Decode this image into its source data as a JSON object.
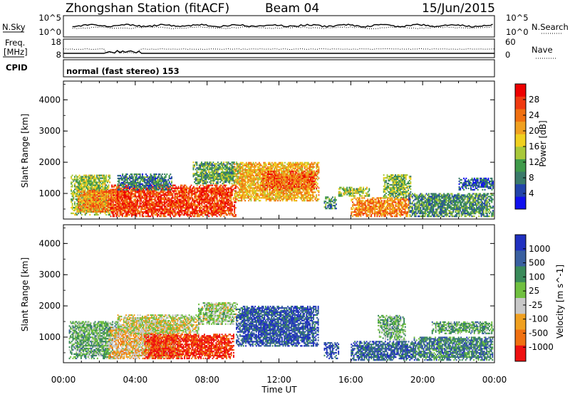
{
  "header": {
    "station": "Zhongshan Station (fitACF)",
    "beam": "Beam 04",
    "date": "15/Jun/2015"
  },
  "nsky_panel": {
    "left_label": "N.Sky",
    "left_ticks": [
      "10^5",
      "10^0"
    ],
    "right_label": "N.Search",
    "right_ticks": [
      "10^5",
      "10^0"
    ]
  },
  "freq_panel": {
    "left_label_1": "Freq.",
    "left_label_2": "[MHz]",
    "left_ticks": [
      "18",
      "8"
    ],
    "right_label": "Nave",
    "right_ticks": [
      "60",
      "0"
    ]
  },
  "cpid": {
    "label": "CPID",
    "mode": "normal (fast stereo) 153"
  },
  "x_axis": {
    "label": "Time UT",
    "ticks": [
      "00:00",
      "04:00",
      "08:00",
      "12:00",
      "16:00",
      "20:00",
      "00:00"
    ]
  },
  "chart_data": [
    {
      "type": "heatmap",
      "panel": "power",
      "xlabel": "Time UT",
      "ylabel": "Slant Range [km]",
      "xlim": [
        0,
        24
      ],
      "ylim": [
        180,
        4600
      ],
      "y_ticks": [
        "1000",
        "2000",
        "3000",
        "4000"
      ],
      "colorbar_label": "Power [dB]",
      "colorbar_ticks": [
        "4",
        "8",
        "12",
        "16",
        "20",
        "24",
        "28"
      ],
      "colors": [
        "#1010ee",
        "#2244aa",
        "#3a7a6a",
        "#3f9a4a",
        "#a8c83a",
        "#f0d020",
        "#f0a020",
        "#f07010",
        "#f03a10",
        "#ee0000"
      ],
      "regions": [
        {
          "t0": 0.4,
          "t1": 2.6,
          "r0": 300,
          "r1": 1600,
          "v": 0.45
        },
        {
          "t0": 0.8,
          "t1": 3.8,
          "r0": 400,
          "r1": 1100,
          "v": 0.7
        },
        {
          "t0": 2.6,
          "t1": 9.6,
          "r0": 250,
          "r1": 1250,
          "v": 0.85
        },
        {
          "t0": 3.0,
          "t1": 6.0,
          "r0": 1100,
          "r1": 1600,
          "v": 0.25
        },
        {
          "t0": 7.2,
          "t1": 9.8,
          "r0": 1300,
          "r1": 2000,
          "v": 0.35
        },
        {
          "t0": 9.5,
          "t1": 14.2,
          "r0": 750,
          "r1": 2000,
          "v": 0.62
        },
        {
          "t0": 11.0,
          "t1": 14.1,
          "r0": 1100,
          "r1": 1700,
          "v": 0.78
        },
        {
          "t0": 14.5,
          "t1": 15.2,
          "r0": 500,
          "r1": 900,
          "v": 0.3
        },
        {
          "t0": 15.3,
          "t1": 17.0,
          "r0": 900,
          "r1": 1200,
          "v": 0.45
        },
        {
          "t0": 16.0,
          "t1": 19.3,
          "r0": 250,
          "r1": 850,
          "v": 0.72
        },
        {
          "t0": 17.8,
          "t1": 19.3,
          "r0": 850,
          "r1": 1600,
          "v": 0.4
        },
        {
          "t0": 19.2,
          "t1": 23.9,
          "r0": 250,
          "r1": 1000,
          "v": 0.3
        },
        {
          "t0": 22.0,
          "t1": 23.9,
          "r0": 1100,
          "r1": 1500,
          "v": 0.2
        }
      ]
    },
    {
      "type": "heatmap",
      "panel": "velocity",
      "xlabel": "Time UT",
      "ylabel": "Slant Range [km]",
      "xlim": [
        0,
        24
      ],
      "ylim": [
        180,
        4600
      ],
      "y_ticks": [
        "1000",
        "2000",
        "3000",
        "4000"
      ],
      "colorbar_label": "Velocity [m s^-1]",
      "colorbar_ticks": [
        "1000",
        "500",
        "100",
        "25",
        "-25",
        "-100",
        "-500",
        "-1000"
      ],
      "colors": [
        "#2030c0",
        "#3a60a0",
        "#3a8a5a",
        "#70c040",
        "#c8c8c8",
        "#f0a020",
        "#f07010",
        "#ee1010"
      ],
      "regions": [
        {
          "t0": 0.3,
          "t1": 3.0,
          "r0": 300,
          "r1": 1500,
          "v": 0.4
        },
        {
          "t0": 2.5,
          "t1": 6.5,
          "r0": 300,
          "r1": 1300,
          "v": 0.65
        },
        {
          "t0": 4.5,
          "t1": 9.5,
          "r0": 300,
          "r1": 1100,
          "v": 0.92
        },
        {
          "t0": 3.0,
          "t1": 7.5,
          "r0": 1100,
          "r1": 1700,
          "v": 0.55
        },
        {
          "t0": 7.5,
          "t1": 9.7,
          "r0": 1400,
          "r1": 2100,
          "v": 0.5
        },
        {
          "t0": 9.6,
          "t1": 14.2,
          "r0": 700,
          "r1": 2000,
          "v": 0.15
        },
        {
          "t0": 14.5,
          "t1": 15.3,
          "r0": 300,
          "r1": 800,
          "v": 0.15
        },
        {
          "t0": 16.0,
          "t1": 19.8,
          "r0": 250,
          "r1": 850,
          "v": 0.2
        },
        {
          "t0": 17.5,
          "t1": 19.0,
          "r0": 900,
          "r1": 1700,
          "v": 0.4
        },
        {
          "t0": 19.5,
          "t1": 23.9,
          "r0": 250,
          "r1": 1000,
          "v": 0.28
        },
        {
          "t0": 20.5,
          "t1": 23.9,
          "r0": 1100,
          "r1": 1500,
          "v": 0.38
        }
      ]
    }
  ]
}
